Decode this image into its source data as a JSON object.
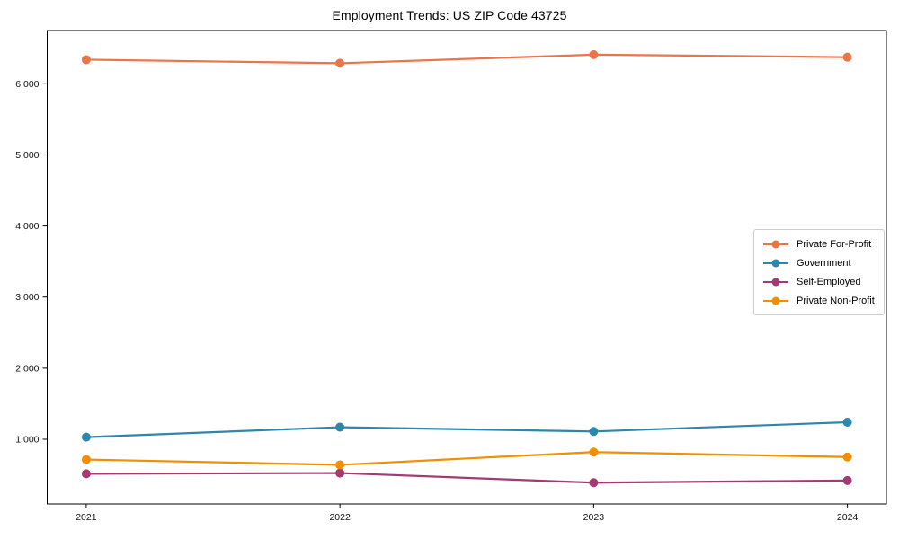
{
  "chart_data": {
    "type": "line",
    "title": "Employment Trends: US ZIP Code 43725",
    "categories": [
      "2021",
      "2022",
      "2023",
      "2024"
    ],
    "series": [
      {
        "name": "Private For-Profit",
        "color": "#e8764b",
        "values": [
          6340,
          6290,
          6410,
          6375
        ]
      },
      {
        "name": "Government",
        "color": "#2e86ab",
        "values": [
          1030,
          1170,
          1110,
          1240
        ]
      },
      {
        "name": "Self-Employed",
        "color": "#a23b72",
        "values": [
          515,
          525,
          390,
          420
        ]
      },
      {
        "name": "Private Non-Profit",
        "color": "#f18f01",
        "values": [
          715,
          640,
          820,
          750
        ]
      }
    ],
    "xlabel": "",
    "ylabel": "",
    "ylim": [
      90,
      6750
    ],
    "yticks": [
      1000,
      2000,
      3000,
      4000,
      5000,
      6000
    ],
    "ytick_labels": [
      "1,000",
      "2,000",
      "3,000",
      "4,000",
      "5,000",
      "6,000"
    ],
    "grid": false,
    "legend_position": "center right",
    "marker": "circle",
    "axis_color": "#000000",
    "legend_border_color": "#cccccc"
  }
}
